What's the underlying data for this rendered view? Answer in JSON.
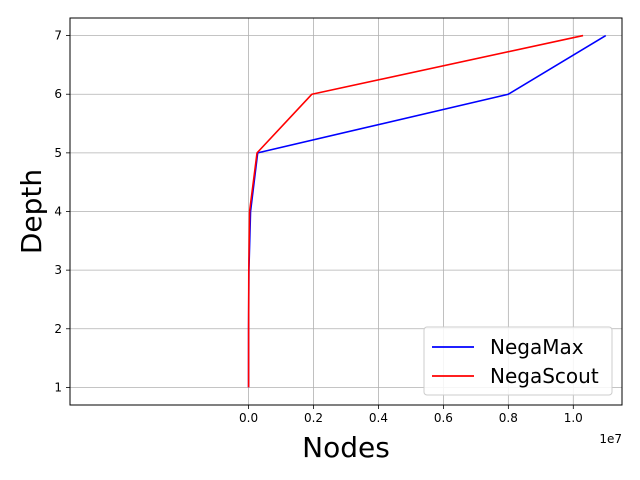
{
  "chart_data": {
    "type": "line",
    "title": "",
    "xlabel": "Nodes",
    "ylabel": "Depth",
    "x_offset_label": "1e7",
    "xlim": [
      -5500000,
      11500000
    ],
    "ylim": [
      0.7,
      7.3
    ],
    "x_ticks": [
      0,
      2000000,
      4000000,
      6000000,
      8000000,
      10000000
    ],
    "x_tick_labels": [
      "0.0",
      "0.2",
      "0.4",
      "0.6",
      "0.8",
      "1.0"
    ],
    "y_ticks": [
      1,
      2,
      3,
      4,
      5,
      6,
      7
    ],
    "y_tick_labels": [
      "1",
      "2",
      "3",
      "4",
      "5",
      "6",
      "7"
    ],
    "grid": true,
    "legend_position": "lower-right",
    "series": [
      {
        "name": "NegaMax",
        "color": "#0000ff",
        "x": [
          30,
          900,
          10000,
          60000,
          280000,
          8000000,
          11000000
        ],
        "y": [
          1,
          2,
          3,
          4,
          5,
          6,
          7
        ]
      },
      {
        "name": "NegaScout",
        "color": "#ff0000",
        "x": [
          30,
          600,
          6000,
          30000,
          260000,
          1950000,
          10300000
        ],
        "y": [
          1,
          2,
          3,
          4,
          5,
          6,
          7
        ]
      }
    ]
  }
}
